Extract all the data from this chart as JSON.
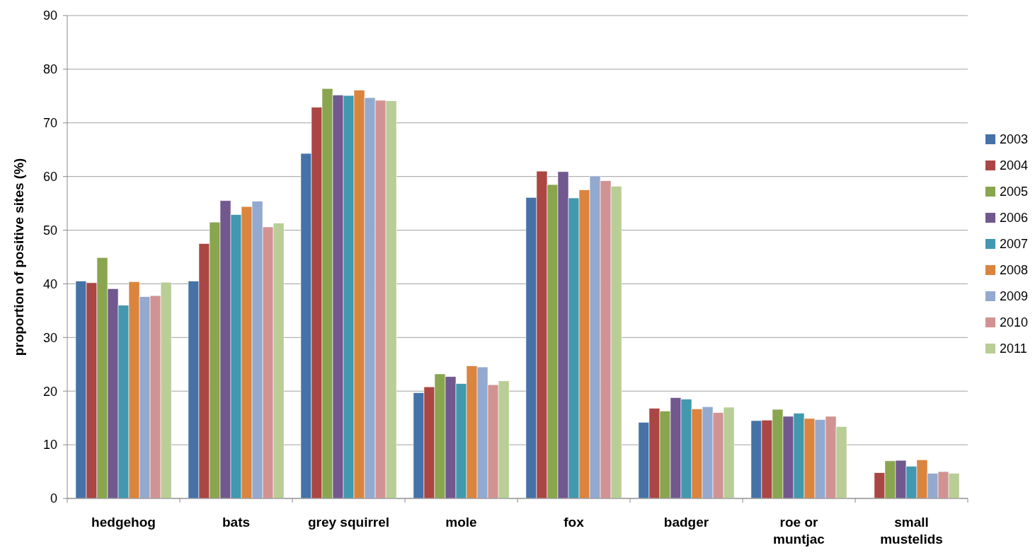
{
  "chart_data": {
    "type": "bar",
    "ylabel": "proportion of positive sites (%)",
    "categories": [
      "hedgehog",
      "bats",
      "grey squirrel",
      "mole",
      "fox",
      "badger",
      "roe or muntjac",
      "small mustelids"
    ],
    "series": [
      {
        "name": "2003",
        "color": "#4572a7",
        "values": [
          40.5,
          40.5,
          64.3,
          19.7,
          56.1,
          14.2,
          14.5,
          null
        ]
      },
      {
        "name": "2004",
        "color": "#aa4643",
        "values": [
          40.2,
          47.5,
          72.9,
          20.8,
          61.0,
          16.8,
          14.6,
          4.8
        ]
      },
      {
        "name": "2005",
        "color": "#89a54e",
        "values": [
          44.9,
          51.5,
          76.4,
          23.2,
          58.5,
          16.3,
          16.6,
          7.0
        ]
      },
      {
        "name": "2006",
        "color": "#71588f",
        "values": [
          39.1,
          55.5,
          75.2,
          22.7,
          60.9,
          18.8,
          15.3,
          7.1
        ]
      },
      {
        "name": "2007",
        "color": "#4198af",
        "values": [
          36.0,
          52.9,
          75.1,
          21.4,
          56.0,
          18.5,
          15.9,
          6.0
        ]
      },
      {
        "name": "2008",
        "color": "#db843d",
        "values": [
          40.4,
          54.4,
          76.1,
          24.7,
          57.5,
          16.7,
          14.9,
          7.2
        ]
      },
      {
        "name": "2009",
        "color": "#93a9cf",
        "values": [
          37.6,
          55.4,
          74.7,
          24.5,
          60.1,
          17.1,
          14.7,
          4.7
        ]
      },
      {
        "name": "2010",
        "color": "#d19392",
        "values": [
          37.8,
          50.6,
          74.2,
          21.2,
          59.2,
          16.0,
          15.3,
          5.0
        ]
      },
      {
        "name": "2011",
        "color": "#b9cd96",
        "values": [
          40.3,
          51.3,
          74.1,
          21.9,
          58.2,
          17.0,
          13.4,
          4.7
        ]
      }
    ],
    "ylim": [
      0,
      90
    ],
    "yticks": [
      0,
      10,
      20,
      30,
      40,
      50,
      60,
      70,
      80,
      90
    ],
    "grid": "y",
    "legend": "right"
  }
}
